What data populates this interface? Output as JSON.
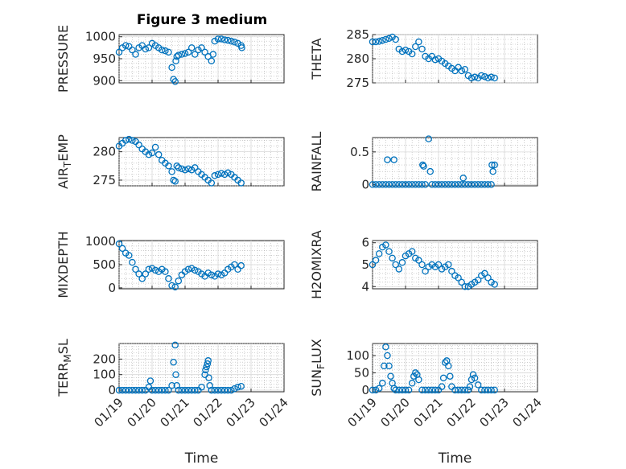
{
  "figure": {
    "title": "Figure 3 medium",
    "marker_color": "#0072BD"
  },
  "chart_data": [
    {
      "type": "scatter",
      "title": "Figure 3 medium",
      "ylabel": "PRESSURE",
      "xlabel": "",
      "xlim": [
        "01/19",
        "01/24"
      ],
      "ylim": [
        895,
        1005
      ],
      "yticks": [
        900,
        950,
        1000
      ],
      "xticks": [
        "01/19",
        "01/20",
        "01/21",
        "01/22",
        "01/23",
        "01/24"
      ],
      "grid": true,
      "x": [
        0.0,
        0.1,
        0.2,
        0.3,
        0.4,
        0.5,
        0.6,
        0.7,
        0.8,
        0.9,
        1.0,
        1.1,
        1.2,
        1.3,
        1.4,
        1.5,
        1.6,
        1.65,
        1.7,
        1.72,
        1.75,
        1.8,
        1.9,
        2.0,
        2.1,
        2.2,
        2.3,
        2.4,
        2.5,
        2.6,
        2.7,
        2.8,
        2.85,
        2.9,
        3.0,
        3.1,
        3.2,
        3.3,
        3.4,
        3.5,
        3.6,
        3.7,
        3.72
      ],
      "y": [
        965,
        975,
        980,
        978,
        970,
        960,
        975,
        980,
        972,
        975,
        985,
        980,
        975,
        970,
        968,
        965,
        930,
        903,
        898,
        945,
        955,
        958,
        960,
        962,
        965,
        975,
        960,
        970,
        975,
        965,
        955,
        945,
        960,
        990,
        995,
        995,
        993,
        992,
        990,
        988,
        985,
        980,
        975
      ]
    },
    {
      "type": "scatter",
      "ylabel": "THETA",
      "xlabel": "",
      "xlim": [
        "01/19",
        "01/24"
      ],
      "ylim": [
        275,
        285
      ],
      "yticks": [
        275,
        280,
        285
      ],
      "xticks": [
        "01/19",
        "01/20",
        "01/21",
        "01/22",
        "01/23",
        "01/24"
      ],
      "grid": true,
      "x": [
        0.0,
        0.1,
        0.2,
        0.3,
        0.4,
        0.5,
        0.6,
        0.7,
        0.8,
        0.9,
        1.0,
        1.1,
        1.2,
        1.3,
        1.4,
        1.5,
        1.6,
        1.7,
        1.8,
        1.9,
        2.0,
        2.1,
        2.2,
        2.3,
        2.4,
        2.5,
        2.6,
        2.7,
        2.8,
        2.9,
        3.0,
        3.1,
        3.2,
        3.3,
        3.4,
        3.5,
        3.6,
        3.7
      ],
      "y": [
        283.5,
        283.5,
        283.6,
        283.8,
        284.0,
        284.2,
        284.5,
        284.0,
        282.0,
        281.5,
        281.8,
        281.5,
        281.0,
        282.5,
        283.5,
        282.0,
        280.5,
        280.0,
        280.5,
        279.8,
        280.0,
        279.5,
        279.0,
        278.5,
        278.0,
        277.5,
        278.2,
        277.5,
        277.8,
        276.5,
        276.0,
        276.2,
        276.0,
        276.5,
        276.3,
        276.0,
        276.2,
        276.0
      ]
    },
    {
      "type": "scatter",
      "ylabel": "AIR_TEMP",
      "xlabel": "",
      "xlim": [
        "01/19",
        "01/24"
      ],
      "ylim": [
        274,
        282.5
      ],
      "yticks": [
        275,
        280
      ],
      "xticks": [
        "01/19",
        "01/20",
        "01/21",
        "01/22",
        "01/23",
        "01/24"
      ],
      "grid": true,
      "x": [
        0.0,
        0.1,
        0.2,
        0.3,
        0.4,
        0.5,
        0.6,
        0.7,
        0.8,
        0.9,
        1.0,
        1.1,
        1.2,
        1.3,
        1.4,
        1.5,
        1.6,
        1.65,
        1.7,
        1.75,
        1.8,
        1.9,
        2.0,
        2.1,
        2.2,
        2.3,
        2.4,
        2.5,
        2.6,
        2.7,
        2.8,
        2.9,
        3.0,
        3.1,
        3.2,
        3.3,
        3.4,
        3.5,
        3.6,
        3.7
      ],
      "y": [
        281.0,
        281.5,
        282.0,
        282.2,
        282.0,
        281.8,
        281.2,
        280.5,
        280.0,
        279.5,
        279.8,
        280.8,
        279.5,
        278.5,
        278.0,
        277.5,
        276.5,
        275.0,
        274.8,
        277.5,
        277.2,
        277.0,
        276.8,
        277.0,
        276.8,
        277.2,
        276.5,
        276.0,
        275.5,
        275.0,
        274.5,
        275.8,
        276.0,
        276.2,
        276.0,
        276.3,
        276.0,
        275.5,
        275.0,
        274.5
      ]
    },
    {
      "type": "scatter",
      "ylabel": "RAINFALL",
      "xlabel": "",
      "xlim": [
        "01/19",
        "01/24"
      ],
      "ylim": [
        -0.02,
        0.72
      ],
      "yticks": [
        0,
        0.5
      ],
      "xticks": [
        "01/19",
        "01/20",
        "01/21",
        "01/22",
        "01/23",
        "01/24"
      ],
      "grid": true,
      "x": [
        0.0,
        0.1,
        0.2,
        0.3,
        0.4,
        0.45,
        0.5,
        0.6,
        0.65,
        0.7,
        0.8,
        0.9,
        1.0,
        1.1,
        1.2,
        1.3,
        1.4,
        1.5,
        1.52,
        1.55,
        1.6,
        1.7,
        1.75,
        1.8,
        1.9,
        2.0,
        2.1,
        2.2,
        2.3,
        2.4,
        2.5,
        2.6,
        2.7,
        2.75,
        2.8,
        2.9,
        3.0,
        3.1,
        3.2,
        3.3,
        3.4,
        3.5,
        3.6,
        3.62,
        3.65,
        3.7
      ],
      "y": [
        0,
        0,
        0,
        0,
        0,
        0.38,
        0,
        0,
        0.38,
        0,
        0,
        0,
        0,
        0,
        0,
        0,
        0,
        0,
        0.3,
        0.28,
        0,
        0.7,
        0.2,
        0,
        0,
        0,
        0,
        0,
        0,
        0,
        0,
        0,
        0,
        0.1,
        0,
        0,
        0,
        0,
        0,
        0,
        0,
        0,
        0,
        0.3,
        0.2,
        0.3
      ]
    },
    {
      "type": "scatter",
      "ylabel": "MIXDEPTH",
      "xlabel": "",
      "xlim": [
        "01/19",
        "01/24"
      ],
      "ylim": [
        -20,
        1020
      ],
      "yticks": [
        0,
        500,
        1000
      ],
      "xticks": [
        "01/19",
        "01/20",
        "01/21",
        "01/22",
        "01/23",
        "01/24"
      ],
      "grid": true,
      "x": [
        0.0,
        0.1,
        0.2,
        0.3,
        0.4,
        0.5,
        0.6,
        0.7,
        0.8,
        0.9,
        1.0,
        1.1,
        1.2,
        1.3,
        1.4,
        1.5,
        1.6,
        1.7,
        1.8,
        1.9,
        2.0,
        2.1,
        2.2,
        2.3,
        2.4,
        2.5,
        2.6,
        2.7,
        2.8,
        2.9,
        3.0,
        3.1,
        3.2,
        3.3,
        3.4,
        3.5,
        3.6,
        3.7
      ],
      "y": [
        950,
        850,
        750,
        700,
        550,
        400,
        300,
        200,
        300,
        400,
        420,
        380,
        350,
        400,
        350,
        200,
        50,
        20,
        150,
        280,
        350,
        400,
        420,
        380,
        350,
        300,
        250,
        320,
        280,
        250,
        300,
        280,
        320,
        400,
        450,
        500,
        400,
        480
      ]
    },
    {
      "type": "scatter",
      "ylabel": "H2OMIXRA",
      "xlabel": "",
      "xlim": [
        "01/19",
        "01/24"
      ],
      "ylim": [
        3.9,
        6.1
      ],
      "yticks": [
        4,
        5,
        6
      ],
      "xticks": [
        "01/19",
        "01/20",
        "01/21",
        "01/22",
        "01/23",
        "01/24"
      ],
      "grid": true,
      "x": [
        0.0,
        0.1,
        0.2,
        0.3,
        0.4,
        0.5,
        0.6,
        0.7,
        0.8,
        0.9,
        1.0,
        1.1,
        1.2,
        1.3,
        1.4,
        1.5,
        1.6,
        1.7,
        1.8,
        1.9,
        2.0,
        2.1,
        2.2,
        2.3,
        2.4,
        2.5,
        2.6,
        2.7,
        2.8,
        2.9,
        3.0,
        3.1,
        3.2,
        3.3,
        3.4,
        3.5,
        3.6,
        3.7
      ],
      "y": [
        5.0,
        5.2,
        5.5,
        5.8,
        5.9,
        5.6,
        5.3,
        5.0,
        4.8,
        5.1,
        5.4,
        5.5,
        5.6,
        5.3,
        5.2,
        5.0,
        4.7,
        4.9,
        5.0,
        4.9,
        5.0,
        4.8,
        4.9,
        5.0,
        4.7,
        4.5,
        4.4,
        4.2,
        4.0,
        4.0,
        4.1,
        4.2,
        4.3,
        4.5,
        4.6,
        4.4,
        4.2,
        4.1
      ]
    },
    {
      "type": "scatter",
      "ylabel": "TERR_MSL",
      "xlabel": "Time",
      "xlim": [
        "01/19",
        "01/24"
      ],
      "ylim": [
        -10,
        300
      ],
      "yticks": [
        0,
        100,
        200
      ],
      "xticks": [
        "01/19",
        "01/20",
        "01/21",
        "01/22",
        "01/23",
        "01/24"
      ],
      "grid": true,
      "x": [
        0.0,
        0.1,
        0.2,
        0.3,
        0.4,
        0.5,
        0.6,
        0.7,
        0.8,
        0.9,
        0.95,
        1.0,
        1.1,
        1.2,
        1.3,
        1.4,
        1.5,
        1.6,
        1.65,
        1.7,
        1.72,
        1.75,
        1.8,
        1.9,
        2.0,
        2.1,
        2.2,
        2.3,
        2.4,
        2.5,
        2.6,
        2.62,
        2.65,
        2.68,
        2.7,
        2.72,
        2.75,
        2.8,
        2.9,
        3.0,
        3.1,
        3.2,
        3.3,
        3.4,
        3.5,
        3.6,
        3.7
      ],
      "y": [
        0,
        0,
        0,
        0,
        0,
        0,
        0,
        0,
        0,
        20,
        60,
        0,
        0,
        0,
        0,
        0,
        0,
        30,
        180,
        290,
        100,
        30,
        0,
        0,
        0,
        0,
        0,
        0,
        0,
        20,
        100,
        130,
        150,
        170,
        190,
        80,
        30,
        0,
        0,
        0,
        0,
        0,
        0,
        0,
        10,
        20,
        25
      ]
    },
    {
      "type": "scatter",
      "ylabel": "SUN_FLUX",
      "xlabel": "Time",
      "xlim": [
        "01/19",
        "01/24"
      ],
      "ylim": [
        -5,
        135
      ],
      "yticks": [
        0,
        50,
        100
      ],
      "xticks": [
        "01/19",
        "01/20",
        "01/21",
        "01/22",
        "01/23",
        "01/24"
      ],
      "grid": true,
      "x": [
        0.0,
        0.1,
        0.2,
        0.3,
        0.35,
        0.4,
        0.45,
        0.5,
        0.55,
        0.6,
        0.65,
        0.7,
        0.8,
        0.9,
        1.0,
        1.1,
        1.2,
        1.25,
        1.3,
        1.35,
        1.4,
        1.5,
        1.6,
        1.7,
        1.8,
        1.9,
        2.0,
        2.1,
        2.15,
        2.2,
        2.25,
        2.3,
        2.35,
        2.4,
        2.5,
        2.6,
        2.7,
        2.8,
        2.9,
        2.95,
        3.0,
        3.05,
        3.1,
        3.2,
        3.3,
        3.4,
        3.5,
        3.6,
        3.7
      ],
      "y": [
        0,
        0,
        5,
        20,
        70,
        125,
        100,
        70,
        40,
        20,
        5,
        0,
        0,
        0,
        0,
        0,
        20,
        40,
        50,
        45,
        30,
        0,
        0,
        0,
        0,
        0,
        0,
        10,
        35,
        80,
        85,
        70,
        40,
        10,
        0,
        0,
        0,
        0,
        0,
        10,
        30,
        45,
        35,
        15,
        0,
        0,
        0,
        0,
        0
      ]
    }
  ]
}
